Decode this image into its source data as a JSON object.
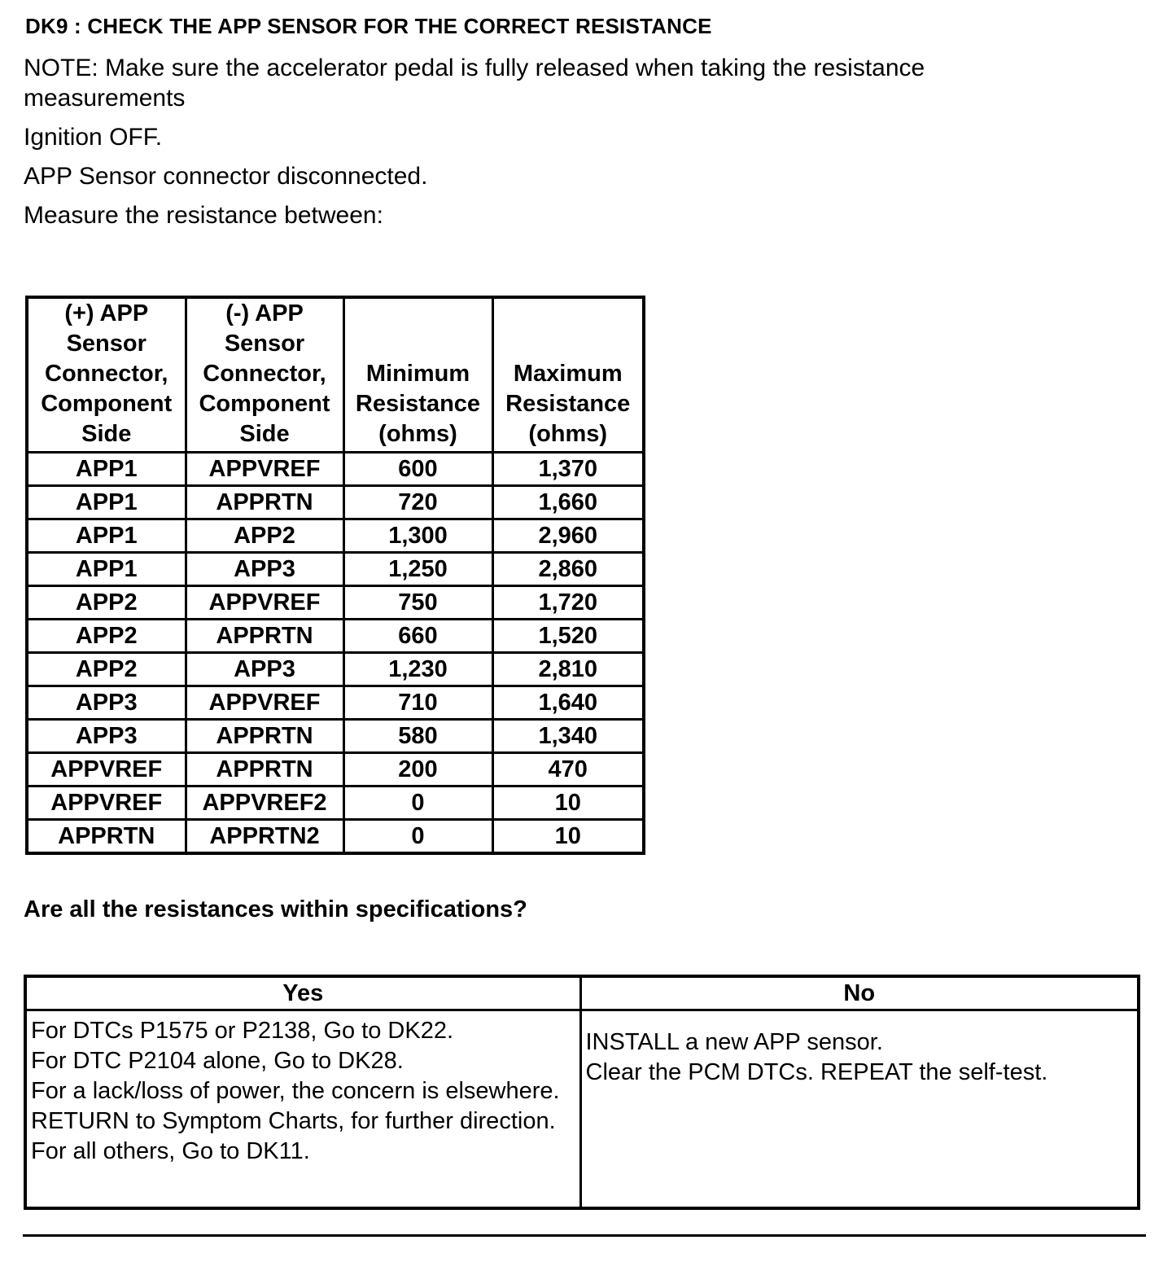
{
  "title": "DK9 : CHECK THE APP SENSOR FOR THE CORRECT RESISTANCE",
  "instructions": [
    "NOTE: Make sure the accelerator pedal is fully released when taking the resistance measurements",
    "Ignition OFF.",
    "APP Sensor connector disconnected.",
    "Measure the resistance between:"
  ],
  "spec_table": {
    "headers": [
      "(+) APP Sensor Connector, Component Side",
      "(-) APP Sensor Connector, Component Side",
      "Minimum Resistance (ohms)",
      "Maximum Resistance (ohms)"
    ],
    "rows": [
      [
        "APP1",
        "APPVREF",
        "600",
        "1,370"
      ],
      [
        "APP1",
        "APPRTN",
        "720",
        "1,660"
      ],
      [
        "APP1",
        "APP2",
        "1,300",
        "2,960"
      ],
      [
        "APP1",
        "APP3",
        "1,250",
        "2,860"
      ],
      [
        "APP2",
        "APPVREF",
        "750",
        "1,720"
      ],
      [
        "APP2",
        "APPRTN",
        "660",
        "1,520"
      ],
      [
        "APP2",
        "APP3",
        "1,230",
        "2,810"
      ],
      [
        "APP3",
        "APPVREF",
        "710",
        "1,640"
      ],
      [
        "APP3",
        "APPRTN",
        "580",
        "1,340"
      ],
      [
        "APPVREF",
        "APPRTN",
        "200",
        "470"
      ],
      [
        "APPVREF",
        "APPVREF2",
        "0",
        "10"
      ],
      [
        "APPRTN",
        "APPRTN2",
        "0",
        "10"
      ]
    ]
  },
  "question": "Are all the resistances within specifications?",
  "result_table": {
    "yes_label": "Yes",
    "no_label": "No",
    "yes_lines": [
      "For DTCs P1575 or P2138, Go to DK22.",
      "For DTC P2104 alone, Go to DK28.",
      "For a lack/loss of power, the concern is elsewhere. RETURN to Symptom Charts, for further direction.",
      "For all others, Go to DK11."
    ],
    "no_lines": [
      "INSTALL a new APP sensor.",
      "Clear the PCM DTCs. REPEAT the self-test."
    ]
  }
}
